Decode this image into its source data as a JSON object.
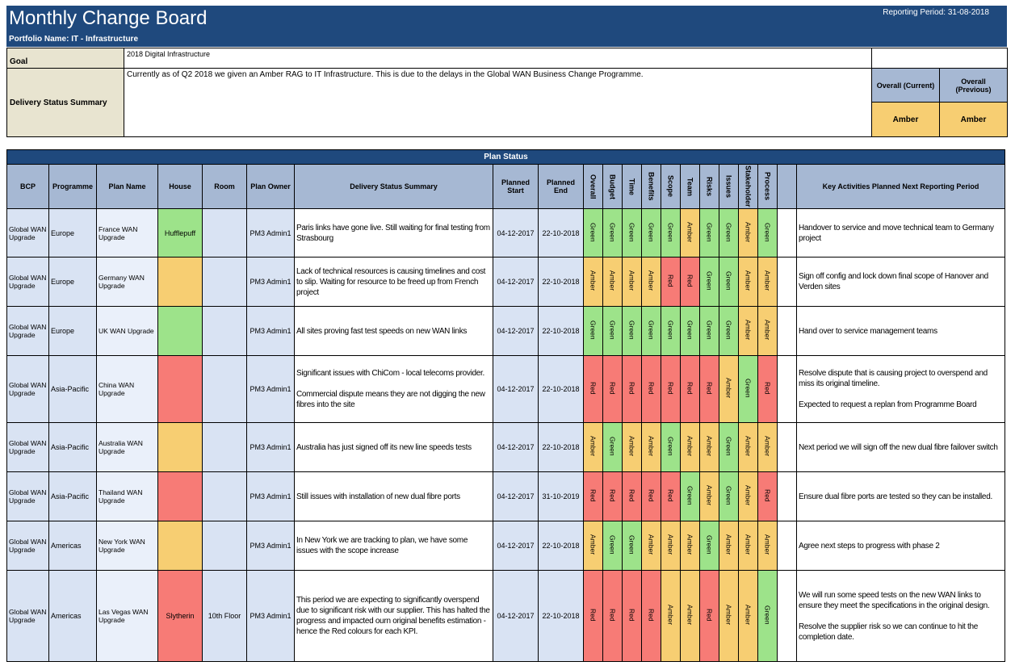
{
  "header": {
    "title": "Monthly Change Board",
    "reporting_period": "Reporting Period:  31-08-2018",
    "portfolio": "Portfolio Name:   IT - Infrastructure"
  },
  "goal": {
    "label": "Goal",
    "value": "2018 Digital Infrastructure"
  },
  "delivery": {
    "label": "Delivery Status Summary",
    "value": "Currently as of Q2 2018 we given an Amber RAG to IT Infrastructure. This is due to the delays in the Global WAN Business Change Programme."
  },
  "overall": {
    "current_label": "Overall (Current)",
    "previous_label": "Overall (Previous)",
    "current_value": "Amber",
    "previous_value": "Amber"
  },
  "plan_status": {
    "title": "Plan Status",
    "headers": {
      "bcp": "BCP",
      "programme": "Programme",
      "plan_name": "Plan Name",
      "house": "House",
      "room": "Room",
      "plan_owner": "Plan Owner",
      "delivery_summary": "Delivery Status Summary",
      "planned_start": "Planned Start",
      "planned_end": "Planned End",
      "kpis": [
        "Overall",
        "Budget",
        "Time",
        "Benefits",
        "Scope",
        "Team",
        "Risks",
        "Issues",
        "Stakeholder",
        "Process"
      ],
      "key_activities": "Key Activities Planned Next Reporting Period"
    },
    "rows": [
      {
        "bcp": "Global WAN Upgrade",
        "programme": "Europe",
        "plan_name": "France WAN Upgrade",
        "house": "Hufflepuff",
        "house_color": "green",
        "room": "",
        "owner": "PM3 Admin1",
        "summary": [
          "Paris links have gone live. Still waiting for final testing from Strasbourg"
        ],
        "start": "04-12-2017",
        "end": "22-10-2018",
        "kpis": [
          "Green",
          "Green",
          "Green",
          "Green",
          "Green",
          "Amber",
          "Green",
          "Green",
          "Amber",
          "Green"
        ],
        "activities": [
          "Handover to service and move technical team to Germany project"
        ]
      },
      {
        "bcp": "Global WAN Upgrade",
        "programme": "Europe",
        "plan_name": "Germany WAN Upgrade",
        "house": "",
        "house_color": "amber",
        "room": "",
        "owner": "PM3 Admin1",
        "summary": [
          "Lack of technical resources is causing timelines and cost to slip. Waiting for resource to be freed up from French project"
        ],
        "start": "04-12-2017",
        "end": "22-10-2018",
        "kpis": [
          "Amber",
          "Amber",
          "Amber",
          "Amber",
          "Red",
          "Red",
          "Green",
          "Green",
          "Amber",
          "Amber"
        ],
        "activities": [
          "Sign off config and lock down final scope of Hanover and Verden sites"
        ]
      },
      {
        "bcp": "Global WAN Upgrade",
        "programme": "Europe",
        "plan_name": "UK WAN Upgrade",
        "house": "",
        "house_color": "green",
        "room": "",
        "owner": "PM3 Admin1",
        "summary": [
          "All sites proving fast test speeds on new WAN links"
        ],
        "start": "04-12-2017",
        "end": "22-10-2018",
        "kpis": [
          "Green",
          "Green",
          "Green",
          "Green",
          "Green",
          "Green",
          "Green",
          "Green",
          "Amber",
          "Amber"
        ],
        "activities": [
          "Hand over to service management teams"
        ]
      },
      {
        "bcp": "Global WAN Upgrade",
        "programme": "Asia-Pacific",
        "plan_name": "China WAN Upgrade",
        "house": "",
        "house_color": "red",
        "room": "",
        "owner": "PM3 Admin1",
        "summary": [
          "Significant issues with ChiCom - local telecoms provider.",
          "",
          "Commercial dispute means they are not digging the new fibres into the site"
        ],
        "start": "04-12-2017",
        "end": "22-10-2018",
        "kpis": [
          "Red",
          "Red",
          "Red",
          "Red",
          "Red",
          "Red",
          "Red",
          "Amber",
          "Green",
          "Red"
        ],
        "activities": [
          "Resolve dispute that is causing project to overspend and miss its original timeline.",
          "",
          "Expected to request a replan from Programme Board"
        ]
      },
      {
        "bcp": "Global WAN Upgrade",
        "programme": "Asia-Pacific",
        "plan_name": "Australia WAN Upgrade",
        "house": "",
        "house_color": "amber",
        "room": "",
        "owner": "PM3 Admin1",
        "summary": [
          "Australia has just signed off its new line speeds tests"
        ],
        "start": "04-12-2017",
        "end": "22-10-2018",
        "kpis": [
          "Amber",
          "Green",
          "Amber",
          "Amber",
          "Green",
          "Amber",
          "Amber",
          "Green",
          "Amber",
          "Amber"
        ],
        "activities": [
          "Next period we will sign off the new dual fibre failover switch"
        ]
      },
      {
        "bcp": "Global WAN Upgrade",
        "programme": "Asia-Pacific",
        "plan_name": "Thailand WAN Upgrade",
        "house": "",
        "house_color": "red",
        "room": "",
        "owner": "PM3 Admin1",
        "summary": [
          "Still issues with installation of new dual fibre ports"
        ],
        "start": "04-12-2017",
        "end": "31-10-2019",
        "kpis": [
          "Red",
          "Red",
          "Red",
          "Red",
          "Red",
          "Green",
          "Amber",
          "Green",
          "Amber",
          "Red"
        ],
        "activities": [
          "Ensure dual fibre ports are tested so they can be installed."
        ]
      },
      {
        "bcp": "Global WAN Upgrade",
        "programme": "Americas",
        "plan_name": "New York WAN Upgrade",
        "house": "",
        "house_color": "amber",
        "room": "",
        "owner": "PM3 Admin1",
        "summary": [
          "In New York we are tracking to plan, we have some issues with the scope increase"
        ],
        "start": "04-12-2017",
        "end": "22-10-2018",
        "kpis": [
          "Amber",
          "Green",
          "Green",
          "Amber",
          "Amber",
          "Amber",
          "Green",
          "Amber",
          "Amber",
          "Amber"
        ],
        "activities": [
          "Agree next steps to progress with phase 2"
        ]
      },
      {
        "bcp": "Global WAN Upgrade",
        "programme": "Americas",
        "plan_name": "Las Vegas WAN Upgrade",
        "house": "Slytherin",
        "house_color": "red",
        "room": "10th Floor",
        "owner": "PM3 Admin1",
        "summary": [
          "This period we are expecting to significantly overspend due to significant risk with our supplier. This has halted the progress and impacted ourn original benefits estimation - hence the Red colours for each KPI."
        ],
        "start": "04-12-2017",
        "end": "22-10-2018",
        "kpis": [
          "Red",
          "Red",
          "Red",
          "Red",
          "Amber",
          "Amber",
          "Red",
          "Amber",
          "Amber",
          "Green"
        ],
        "activities": [
          "We will run some speed tests on the new WAN links to ensure they meet the specifications in the original design.",
          "",
          "Resolve the supplier risk so we can continue to hit the completion date."
        ]
      }
    ]
  },
  "colors": {
    "header": "#1f497d",
    "amber": "#f7ce72",
    "red": "#f77b76",
    "green": "#9de38a",
    "col_header": "#a6b8d3"
  }
}
